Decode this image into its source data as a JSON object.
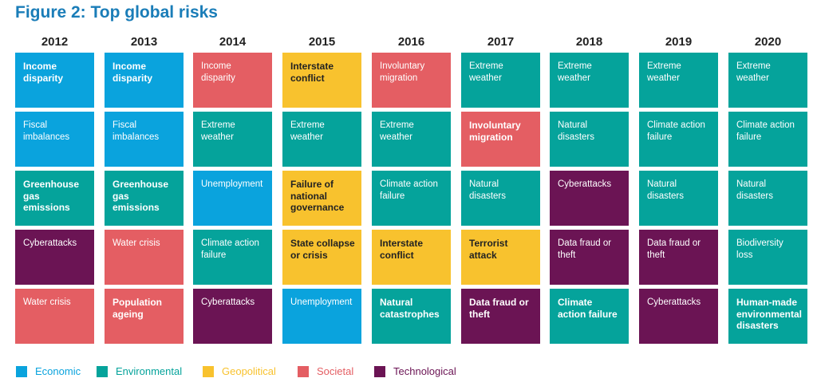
{
  "title": "Figure 2: Top global risks",
  "chart_data": {
    "type": "table",
    "title": "Figure 2: Top global risks",
    "years": [
      "2012",
      "2013",
      "2014",
      "2015",
      "2016",
      "2017",
      "2018",
      "2019",
      "2020"
    ],
    "categories": {
      "economic": {
        "label": "Economic",
        "color": "#0aa3dd"
      },
      "environmental": {
        "label": "Environmental",
        "color": "#05a39b"
      },
      "geopolitical": {
        "label": "Geopolitical",
        "color": "#f8c22e"
      },
      "societal": {
        "label": "Societal",
        "color": "#e45e63"
      },
      "technological": {
        "label": "Technological",
        "color": "#6b1454"
      }
    },
    "legend_order": [
      "economic",
      "environmental",
      "geopolitical",
      "societal",
      "technological"
    ],
    "columns": [
      [
        {
          "text": "Income disparity",
          "category": "economic",
          "bold": true
        },
        {
          "text": "Fiscal imbalances",
          "category": "economic",
          "bold": false
        },
        {
          "text": "Greenhouse gas emissions",
          "category": "environmental",
          "bold": true
        },
        {
          "text": "Cyberattacks",
          "category": "technological",
          "bold": false
        },
        {
          "text": "Water crisis",
          "category": "societal",
          "bold": false
        }
      ],
      [
        {
          "text": "Income disparity",
          "category": "economic",
          "bold": true
        },
        {
          "text": "Fiscal imbalances",
          "category": "economic",
          "bold": false
        },
        {
          "text": "Greenhouse gas emissions",
          "category": "environmental",
          "bold": true
        },
        {
          "text": "Water crisis",
          "category": "societal",
          "bold": false
        },
        {
          "text": "Population ageing",
          "category": "societal",
          "bold": true
        }
      ],
      [
        {
          "text": "Income disparity",
          "category": "societal",
          "bold": false
        },
        {
          "text": "Extreme weather",
          "category": "environmental",
          "bold": false
        },
        {
          "text": "Unemployment",
          "category": "economic",
          "bold": false
        },
        {
          "text": "Climate action failure",
          "category": "environmental",
          "bold": false
        },
        {
          "text": "Cyberattacks",
          "category": "technological",
          "bold": false
        }
      ],
      [
        {
          "text": "Interstate conflict",
          "category": "geopolitical",
          "bold": true
        },
        {
          "text": "Extreme weather",
          "category": "environmental",
          "bold": false
        },
        {
          "text": "Failure of national governance",
          "category": "geopolitical",
          "bold": true
        },
        {
          "text": "State collapse or crisis",
          "category": "geopolitical",
          "bold": true
        },
        {
          "text": "Unemployment",
          "category": "economic",
          "bold": false
        }
      ],
      [
        {
          "text": "Involuntary migration",
          "category": "societal",
          "bold": false
        },
        {
          "text": "Extreme weather",
          "category": "environmental",
          "bold": false
        },
        {
          "text": "Climate action failure",
          "category": "environmental",
          "bold": false
        },
        {
          "text": "Interstate conflict",
          "category": "geopolitical",
          "bold": true
        },
        {
          "text": "Natural catastrophes",
          "category": "environmental",
          "bold": true
        }
      ],
      [
        {
          "text": "Extreme weather",
          "category": "environmental",
          "bold": false
        },
        {
          "text": "Involuntary migration",
          "category": "societal",
          "bold": true
        },
        {
          "text": "Natural disasters",
          "category": "environmental",
          "bold": false
        },
        {
          "text": "Terrorist attack",
          "category": "geopolitical",
          "bold": true
        },
        {
          "text": "Data fraud or theft",
          "category": "technological",
          "bold": true
        }
      ],
      [
        {
          "text": "Extreme weather",
          "category": "environmental",
          "bold": false
        },
        {
          "text": "Natural disasters",
          "category": "environmental",
          "bold": false
        },
        {
          "text": "Cyberattacks",
          "category": "technological",
          "bold": false
        },
        {
          "text": "Data fraud or theft",
          "category": "technological",
          "bold": false
        },
        {
          "text": "Climate action failure",
          "category": "environmental",
          "bold": true
        }
      ],
      [
        {
          "text": "Extreme weather",
          "category": "environmental",
          "bold": false
        },
        {
          "text": "Climate action failure",
          "category": "environmental",
          "bold": false
        },
        {
          "text": "Natural disasters",
          "category": "environmental",
          "bold": false
        },
        {
          "text": "Data fraud or theft",
          "category": "technological",
          "bold": false
        },
        {
          "text": "Cyberattacks",
          "category": "technological",
          "bold": false
        }
      ],
      [
        {
          "text": "Extreme weather",
          "category": "environmental",
          "bold": false
        },
        {
          "text": "Climate action failure",
          "category": "environmental",
          "bold": false
        },
        {
          "text": "Natural disasters",
          "category": "environmental",
          "bold": false
        },
        {
          "text": "Biodiversity loss",
          "category": "environmental",
          "bold": false
        },
        {
          "text": "Human-made environmental disasters",
          "category": "environmental",
          "bold": true
        }
      ]
    ]
  }
}
